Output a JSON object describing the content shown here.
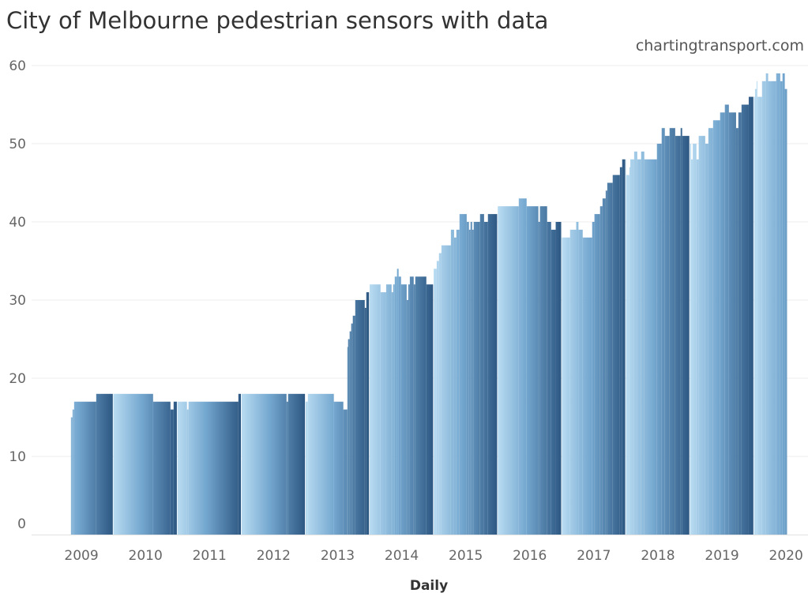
{
  "chart_data": {
    "type": "bar",
    "title": "City of Melbourne pedestrian sensors with data",
    "credit": "chartingtransport.com",
    "xlabel": "Daily",
    "ylabel": "",
    "ylim": [
      0,
      60
    ],
    "yticks": [
      0,
      10,
      20,
      30,
      40,
      50,
      60
    ],
    "xticks": [
      "2009",
      "2010",
      "2011",
      "2012",
      "2013",
      "2014",
      "2015",
      "2016",
      "2017",
      "2018",
      "2019",
      "2020"
    ],
    "grid": true,
    "color_by": "day of year",
    "colors": {
      "year_start": "#b9dcf2",
      "year_end": "#2d5883"
    },
    "end_date": "2020-07-08",
    "steps": [
      [
        "2009-05-04",
        15
      ],
      [
        "2009-05-13",
        16
      ],
      [
        "2009-05-22",
        17
      ],
      [
        "2009-09-25",
        18
      ],
      [
        "2010-08-15",
        17
      ],
      [
        "2010-11-22",
        16
      ],
      [
        "2010-12-10",
        17
      ],
      [
        "2011-02-24",
        16
      ],
      [
        "2011-03-05",
        17
      ],
      [
        "2011-12-14",
        18
      ],
      [
        "2012-09-14",
        17
      ],
      [
        "2012-09-23",
        18
      ],
      [
        "2013-01-01",
        17
      ],
      [
        "2013-01-14",
        18
      ],
      [
        "2013-06-11",
        17
      ],
      [
        "2013-08-04",
        16
      ],
      [
        "2013-08-27",
        24
      ],
      [
        "2013-08-31",
        25
      ],
      [
        "2013-09-09",
        26
      ],
      [
        "2013-09-18",
        27
      ],
      [
        "2013-09-27",
        28
      ],
      [
        "2013-10-11",
        30
      ],
      [
        "2013-12-04",
        29
      ],
      [
        "2013-12-13",
        31
      ],
      [
        "2014-01-01",
        32
      ],
      [
        "2014-03-04",
        31
      ],
      [
        "2014-04-05",
        32
      ],
      [
        "2014-05-06",
        31
      ],
      [
        "2014-05-15",
        32
      ],
      [
        "2014-05-24",
        33
      ],
      [
        "2014-06-06",
        34
      ],
      [
        "2014-06-15",
        33
      ],
      [
        "2014-06-29",
        32
      ],
      [
        "2014-07-31",
        30
      ],
      [
        "2014-08-09",
        32
      ],
      [
        "2014-08-18",
        33
      ],
      [
        "2014-09-09",
        32
      ],
      [
        "2014-09-18",
        33
      ],
      [
        "2014-11-20",
        32
      ],
      [
        "2015-01-01",
        34
      ],
      [
        "2015-01-18",
        35
      ],
      [
        "2015-01-31",
        36
      ],
      [
        "2015-02-14",
        37
      ],
      [
        "2015-04-09",
        39
      ],
      [
        "2015-04-27",
        38
      ],
      [
        "2015-05-10",
        39
      ],
      [
        "2015-05-28",
        41
      ],
      [
        "2015-07-08",
        40
      ],
      [
        "2015-07-21",
        39
      ],
      [
        "2015-07-30",
        40
      ],
      [
        "2015-08-08",
        39
      ],
      [
        "2015-08-17",
        40
      ],
      [
        "2015-09-22",
        41
      ],
      [
        "2015-10-15",
        40
      ],
      [
        "2015-11-06",
        41
      ],
      [
        "2016-01-01",
        42
      ],
      [
        "2016-04-30",
        43
      ],
      [
        "2016-06-14",
        42
      ],
      [
        "2016-08-20",
        40
      ],
      [
        "2016-08-29",
        42
      ],
      [
        "2016-10-09",
        40
      ],
      [
        "2016-11-01",
        39
      ],
      [
        "2016-11-27",
        40
      ],
      [
        "2017-01-01",
        38
      ],
      [
        "2017-02-17",
        39
      ],
      [
        "2017-03-24",
        40
      ],
      [
        "2017-04-06",
        39
      ],
      [
        "2017-04-30",
        38
      ],
      [
        "2017-06-23",
        40
      ],
      [
        "2017-07-06",
        41
      ],
      [
        "2017-08-07",
        42
      ],
      [
        "2017-08-21",
        43
      ],
      [
        "2017-09-08",
        44
      ],
      [
        "2017-09-17",
        45
      ],
      [
        "2017-10-18",
        46
      ],
      [
        "2017-11-28",
        47
      ],
      [
        "2017-12-11",
        48
      ],
      [
        "2018-01-03",
        46
      ],
      [
        "2018-01-21",
        47
      ],
      [
        "2018-01-26",
        48
      ],
      [
        "2018-02-17",
        49
      ],
      [
        "2018-03-07",
        48
      ],
      [
        "2018-03-29",
        49
      ],
      [
        "2018-04-16",
        48
      ],
      [
        "2018-06-27",
        50
      ],
      [
        "2018-07-24",
        52
      ],
      [
        "2018-08-11",
        51
      ],
      [
        "2018-09-07",
        52
      ],
      [
        "2018-10-09",
        51
      ],
      [
        "2018-11-09",
        52
      ],
      [
        "2018-11-18",
        51
      ],
      [
        "2019-01-01",
        50
      ],
      [
        "2019-01-08",
        48
      ],
      [
        "2019-01-17",
        50
      ],
      [
        "2019-02-07",
        48
      ],
      [
        "2019-02-20",
        51
      ],
      [
        "2019-03-29",
        50
      ],
      [
        "2019-04-16",
        52
      ],
      [
        "2019-05-13",
        53
      ],
      [
        "2019-06-22",
        54
      ],
      [
        "2019-07-19",
        55
      ],
      [
        "2019-08-11",
        54
      ],
      [
        "2019-09-21",
        52
      ],
      [
        "2019-10-04",
        54
      ],
      [
        "2019-10-22",
        55
      ],
      [
        "2019-12-02",
        56
      ],
      [
        "2020-01-01",
        56
      ],
      [
        "2020-01-07",
        57
      ],
      [
        "2020-01-16",
        58
      ],
      [
        "2020-01-20",
        56
      ],
      [
        "2020-02-16",
        58
      ],
      [
        "2020-03-09",
        59
      ],
      [
        "2020-03-22",
        58
      ],
      [
        "2020-05-07",
        59
      ],
      [
        "2020-05-30",
        58
      ],
      [
        "2020-06-12",
        59
      ],
      [
        "2020-06-25",
        57
      ]
    ]
  }
}
